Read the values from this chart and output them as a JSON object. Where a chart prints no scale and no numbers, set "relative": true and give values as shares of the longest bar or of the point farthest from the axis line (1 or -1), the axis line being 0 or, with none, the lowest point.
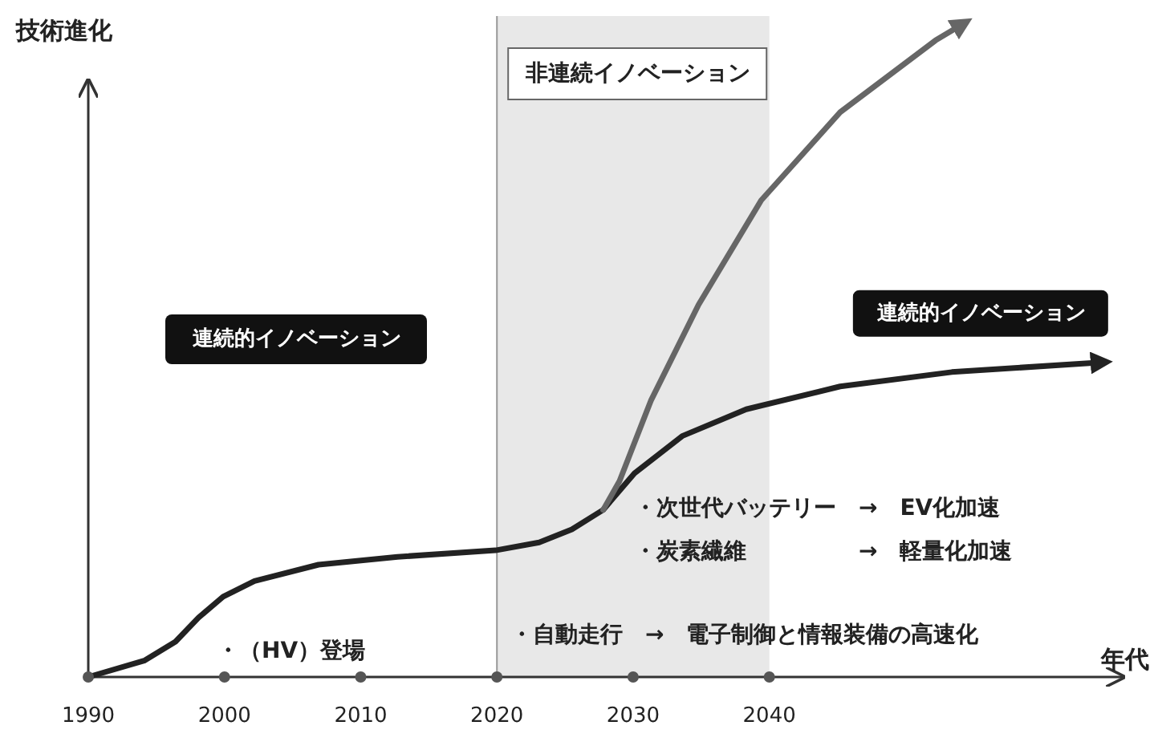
{
  "chart_data": {
    "type": "line",
    "relative": true,
    "ylabel": "技術進化",
    "xlabel": "年代",
    "xlim": [
      1990,
      2066
    ],
    "xticks": [
      1990,
      2000,
      2010,
      2020,
      2030,
      2040
    ],
    "series": [
      {
        "name": "連続的イノベーション",
        "color": "#222222",
        "x": [
          1990,
          1994.1,
          1996.4,
          1998.1,
          1999.9,
          2002.2,
          2006.9,
          2012.7,
          2019.9,
          2023.1,
          2025.5,
          2027.8,
          2030.1,
          2033.6,
          2038.3,
          2045.2,
          2053.4,
          2064.4
        ],
        "values": [
          0,
          0.025,
          0.054,
          0.091,
          0.123,
          0.147,
          0.172,
          0.184,
          0.194,
          0.206,
          0.226,
          0.256,
          0.312,
          0.369,
          0.41,
          0.445,
          0.467,
          0.482
        ]
      },
      {
        "name": "非連続イノベーション",
        "color": "#666666",
        "x": [
          2027.8,
          2029.0,
          2031.3,
          2034.8,
          2039.4,
          2045.2,
          2052.2,
          2054.2
        ],
        "values": [
          0.256,
          0.3,
          0.423,
          0.57,
          0.73,
          0.865,
          0.975,
          1
        ]
      },
      {
        "type": "scatter",
        "marker": "circle",
        "color": "#555555",
        "x": [
          1990,
          2000,
          2010,
          2020,
          2030,
          2040
        ],
        "values": [
          0,
          0,
          0,
          0,
          0,
          0
        ]
      }
    ],
    "bands": [
      {
        "axis": "x",
        "from": 2020,
        "to": 2040,
        "color": "#e8e8e8"
      }
    ],
    "annotations": [
      "連続的イノベーション",
      "・次世代バッテリー　→　EV化加速",
      "・炭素繊維　　　　　→　軽量化加速",
      "・自動走行　→　電子制御と情報装備の高速化",
      "・（HV）登場"
    ]
  }
}
